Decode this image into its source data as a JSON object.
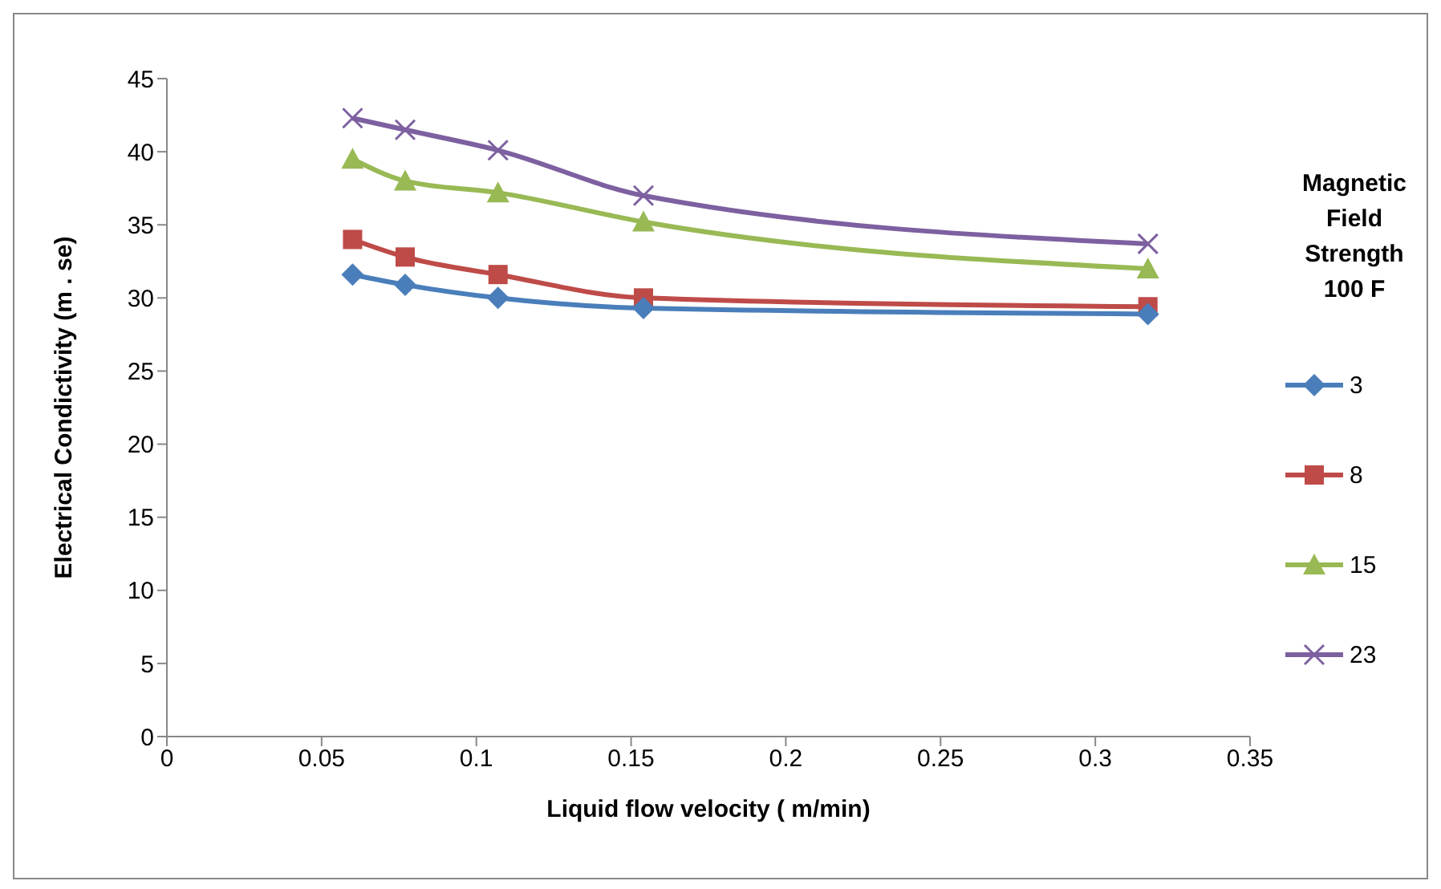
{
  "chart_data": {
    "type": "line",
    "xlabel": "Liquid flow velocity ( m/min)",
    "ylabel": "Electrical Condictivity (m . se)",
    "legend_title": "Magnetic Field Strength 100 F",
    "legend": "right",
    "grid": false,
    "line_style": "solid",
    "x": [
      0.06,
      0.077,
      0.107,
      0.154,
      0.317
    ],
    "xlim": [
      0,
      0.35
    ],
    "xticks": [
      0,
      0.05,
      0.1,
      0.15,
      0.2,
      0.25,
      0.3,
      0.35
    ],
    "ylim": [
      0,
      45
    ],
    "yticks": [
      0,
      5,
      10,
      15,
      20,
      25,
      30,
      35,
      40,
      45
    ],
    "series": [
      {
        "name": "3",
        "color": "#4a7ebb",
        "marker": "diamond",
        "values": [
          31.6,
          30.9,
          30.0,
          29.3,
          28.9
        ]
      },
      {
        "name": "8",
        "color": "#be4b48",
        "marker": "square",
        "values": [
          34.0,
          32.8,
          31.6,
          30.0,
          29.4
        ]
      },
      {
        "name": "15",
        "color": "#98b954",
        "marker": "triangle",
        "values": [
          39.5,
          38.0,
          37.2,
          35.2,
          32.0
        ]
      },
      {
        "name": "23",
        "color": "#7d60a0",
        "marker": "cross",
        "values": [
          42.3,
          41.5,
          40.1,
          37.0,
          33.7
        ]
      }
    ]
  }
}
